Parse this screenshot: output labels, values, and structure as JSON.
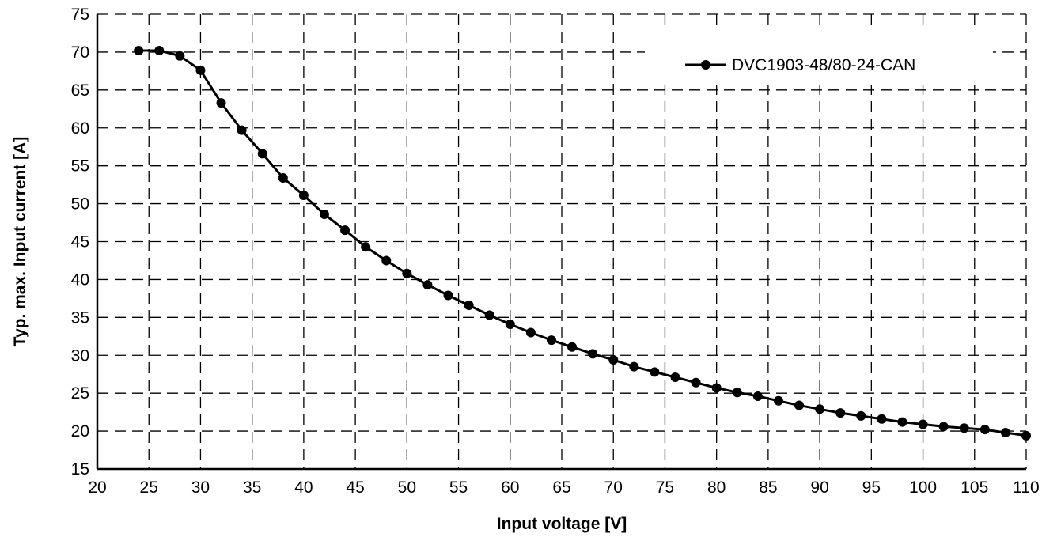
{
  "chart_data": {
    "type": "line",
    "title": "",
    "xlabel": "Input voltage [V]",
    "ylabel": "Typ. max. Input current [A]",
    "xlim": [
      20,
      110
    ],
    "ylim": [
      15,
      75
    ],
    "xticks": [
      20,
      25,
      30,
      35,
      40,
      45,
      50,
      55,
      60,
      65,
      70,
      75,
      80,
      85,
      90,
      95,
      100,
      105,
      110
    ],
    "yticks": [
      15,
      20,
      25,
      30,
      35,
      40,
      45,
      50,
      55,
      60,
      65,
      70,
      75
    ],
    "grid": true,
    "grid_style": "dashed",
    "legend_position": "top-right",
    "series": [
      {
        "name": "DVC1903-48/80-24-CAN",
        "color": "#000000",
        "marker": "circle",
        "x": [
          24,
          26,
          28,
          30,
          32,
          34,
          36,
          38,
          40,
          42,
          44,
          46,
          48,
          50,
          52,
          54,
          56,
          58,
          60,
          62,
          64,
          66,
          68,
          70,
          72,
          74,
          76,
          78,
          80,
          82,
          84,
          86,
          88,
          90,
          92,
          94,
          96,
          98,
          100,
          102,
          104,
          106,
          108,
          110
        ],
        "y": [
          70.2,
          70.2,
          69.5,
          67.6,
          63.3,
          59.7,
          56.6,
          53.4,
          51.1,
          48.6,
          46.5,
          44.3,
          42.5,
          40.8,
          39.3,
          37.9,
          36.6,
          35.3,
          34.1,
          33.0,
          32.0,
          31.1,
          30.2,
          29.4,
          28.5,
          27.8,
          27.1,
          26.4,
          25.7,
          25.1,
          24.6,
          24.0,
          23.4,
          22.9,
          22.4,
          22.0,
          21.6,
          21.2,
          20.9,
          20.6,
          20.4,
          20.2,
          19.8,
          19.4
        ]
      }
    ]
  }
}
